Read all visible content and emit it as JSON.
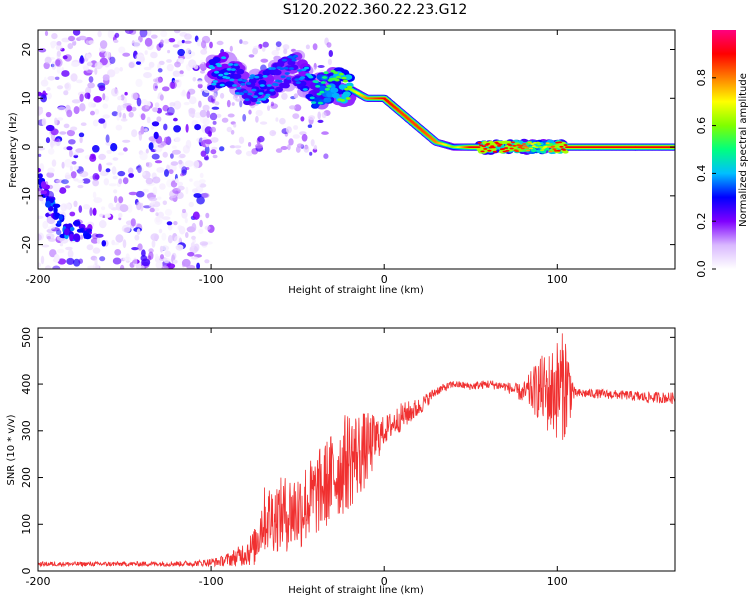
{
  "title": "S120.2022.360.22.23.G12",
  "colors": {
    "snr_line": "#f03030",
    "scatter_light": "#d8c4f4",
    "scatter_mid": "#a06ee8",
    "scatter_dark": "#6a14e6",
    "axis": "#000000"
  },
  "chart_data": [
    {
      "type": "heatmap",
      "title": "",
      "xlabel": "Height of straight line (km)",
      "ylabel": "Frequency (Hz)",
      "xlim": [
        -200,
        168
      ],
      "ylim": [
        -25,
        24
      ],
      "x_ticks": [
        -200,
        -100,
        0,
        100
      ],
      "y_ticks": [
        -20,
        -10,
        0,
        10,
        20
      ],
      "grid": false,
      "colorbar": {
        "label": "Normalized spectral amplitude",
        "range": [
          0,
          1
        ],
        "ticks": [
          0.0,
          0.2,
          0.4,
          0.6,
          0.8
        ],
        "tick_labels": [
          "0.0",
          "0.2",
          "0.4",
          "0.6",
          "0.8"
        ],
        "colormap": [
          "#ffffff",
          "#d9b8ff",
          "#7f00ff",
          "#0000ff",
          "#00bfff",
          "#00ff7f",
          "#7fff00",
          "#ffff00",
          "#ff8000",
          "#ff0000",
          "#ff007f"
        ]
      },
      "ridge": {
        "x": [
          -100,
          -90,
          -80,
          -70,
          -60,
          -50,
          -40,
          -30,
          -20,
          -10,
          0,
          10,
          20,
          30,
          40,
          50,
          60,
          70,
          80,
          90,
          100,
          110,
          120,
          130,
          140,
          150,
          168
        ],
        "frequency": [
          15,
          16,
          12,
          12,
          15,
          16,
          11,
          13,
          12,
          10,
          10,
          7,
          4,
          1,
          0,
          0,
          0,
          0,
          0,
          0,
          0,
          0,
          0,
          0,
          0,
          0,
          0
        ],
        "amplitude": [
          0.4,
          0.4,
          0.35,
          0.4,
          0.35,
          0.35,
          0.45,
          0.55,
          0.6,
          0.8,
          0.9,
          0.85,
          0.85,
          0.8,
          0.6,
          0.9,
          0.9,
          0.9,
          0.85,
          0.6,
          0.9,
          0.9,
          0.9,
          0.9,
          0.9,
          0.9,
          0.9
        ]
      },
      "noise_region": {
        "x_range": [
          -200,
          -100
        ],
        "frequency_range": [
          -25,
          24
        ],
        "amplitude_range": [
          0.02,
          0.3
        ]
      },
      "low_arc": {
        "x": [
          -200,
          -195,
          -190,
          -185,
          -180,
          -175,
          -170
        ],
        "frequency": [
          -5,
          -10,
          -13,
          -17,
          -18,
          -16,
          -18
        ],
        "amplitude": [
          0.3,
          0.3,
          0.35,
          0.4,
          0.35,
          0.3,
          0.3
        ]
      }
    },
    {
      "type": "line",
      "title": "",
      "xlabel": "Height of straight line (km)",
      "ylabel": "SNR (10 * v/v)",
      "xlim": [
        -200,
        168
      ],
      "ylim": [
        0,
        520
      ],
      "x_ticks": [
        -200,
        -100,
        0,
        100
      ],
      "y_ticks": [
        0,
        100,
        200,
        300,
        400,
        500
      ],
      "grid": false,
      "envelope": {
        "x": [
          -200,
          -150,
          -110,
          -95,
          -85,
          -75,
          -70,
          -60,
          -50,
          -40,
          -30,
          -20,
          -10,
          0,
          10,
          20,
          30,
          40,
          50,
          60,
          70,
          80,
          90,
          95,
          100,
          105,
          110,
          120,
          130,
          140,
          150,
          168
        ],
        "mean": [
          15,
          15,
          16,
          20,
          30,
          50,
          110,
          120,
          130,
          160,
          200,
          240,
          260,
          300,
          330,
          350,
          385,
          400,
          395,
          400,
          395,
          380,
          390,
          380,
          390,
          400,
          380,
          380,
          378,
          376,
          372,
          370
        ],
        "spread": [
          5,
          5,
          6,
          10,
          20,
          40,
          70,
          80,
          90,
          90,
          100,
          110,
          80,
          30,
          30,
          20,
          10,
          8,
          8,
          10,
          10,
          20,
          70,
          90,
          110,
          120,
          10,
          10,
          10,
          10,
          12,
          12
        ]
      }
    }
  ]
}
